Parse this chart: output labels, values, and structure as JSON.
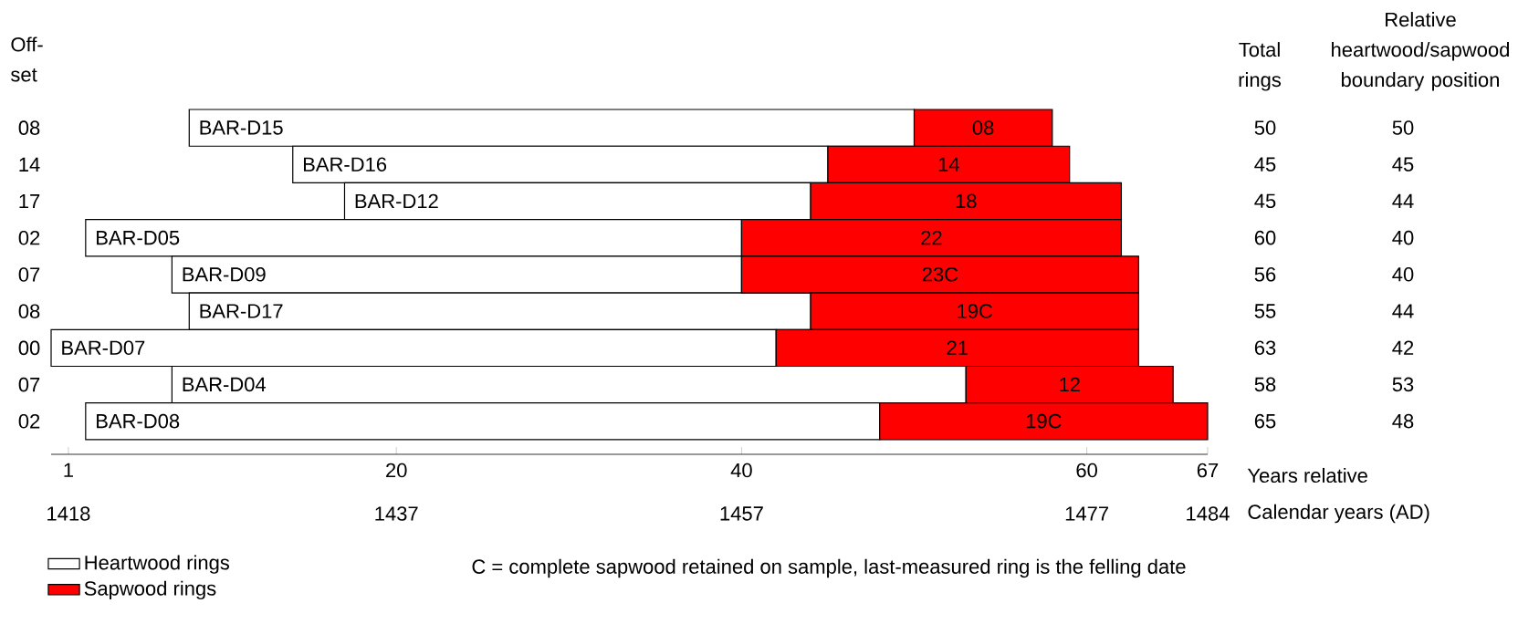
{
  "chart_data": {
    "type": "bar",
    "orientation": "horizontal",
    "ylabel": "Off-set",
    "xlabel": "Years relative",
    "x2label": "Calendar years (AD)",
    "categories": [
      "08",
      "14",
      "17",
      "02",
      "07",
      "08",
      "00",
      "07",
      "02"
    ],
    "series": [
      {
        "name": "Heartwood rings",
        "color": "#ffffff",
        "base": [
          8,
          14,
          17,
          2,
          7,
          8,
          0,
          7,
          2
        ],
        "values": [
          42,
          31,
          27,
          38,
          33,
          36,
          42,
          46,
          46
        ],
        "value_labels": [
          "BAR-D15",
          "BAR-D16",
          "BAR-D12",
          "BAR-D05",
          "BAR-D09",
          "BAR-D17",
          "BAR-D07",
          "BAR-D04",
          "BAR-D08"
        ]
      },
      {
        "name": "Sapwood rings",
        "color": "#ff0000",
        "base": [
          50,
          45,
          44,
          40,
          40,
          44,
          42,
          53,
          48
        ],
        "values": [
          8,
          14,
          18,
          22,
          23,
          19,
          21,
          12,
          19
        ],
        "value_labels": [
          "08",
          "14",
          "18",
          "22",
          "23C",
          "19C",
          "21",
          "12",
          "19C"
        ]
      }
    ],
    "xlim": [
      0,
      67
    ],
    "xticks": [
      1,
      20,
      40,
      60,
      67
    ],
    "x2lim": [
      1417,
      1484
    ],
    "x2ticks": [
      1418,
      1437,
      1457,
      1477,
      1484
    ],
    "legend": "bottom",
    "annotations": [
      "Total rings",
      "50",
      "45",
      "45",
      "60",
      "56",
      "55",
      "63",
      "58",
      "65",
      "Relative heartwood/sapwood boundary position",
      "50",
      "45",
      "44",
      "40",
      "40",
      "44",
      "42",
      "53",
      "48",
      "C = complete sapwood retained on sample, last-measured ring is the felling date"
    ]
  }
}
